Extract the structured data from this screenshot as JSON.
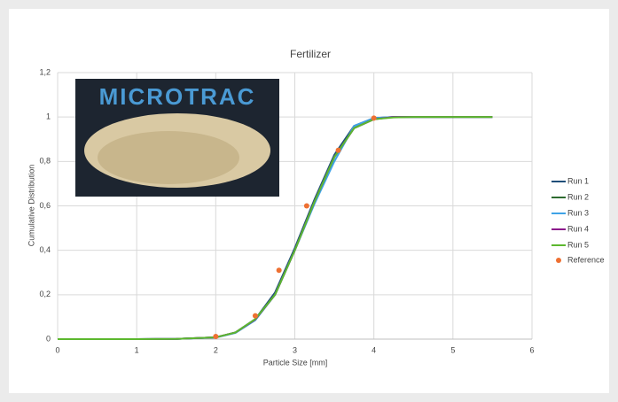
{
  "chart_data": {
    "type": "line",
    "title": "Fertilizer",
    "x_label": "Particle Size [mm]",
    "y_label": "Cumulative Distribution",
    "inset_text": "MICROTRAC",
    "x": [
      0,
      0.5,
      1,
      1.5,
      2,
      2.25,
      2.5,
      2.75,
      3,
      3.25,
      3.5,
      3.75,
      4,
      4.25,
      4.5,
      5,
      5.5
    ],
    "series": [
      {
        "name": "Run 1",
        "color": "#1f4e79",
        "values": [
          0,
          0,
          0,
          0.001,
          0.008,
          0.03,
          0.09,
          0.21,
          0.41,
          0.63,
          0.83,
          0.96,
          0.995,
          1,
          1,
          1,
          1
        ]
      },
      {
        "name": "Run 2",
        "color": "#2e6b30",
        "values": [
          0,
          0,
          0,
          0.001,
          0.008,
          0.03,
          0.09,
          0.2,
          0.4,
          0.62,
          0.82,
          0.95,
          0.99,
          1,
          1,
          1,
          1
        ]
      },
      {
        "name": "Run 3",
        "color": "#3fa3e6",
        "values": [
          0,
          0,
          0,
          0.001,
          0.007,
          0.028,
          0.085,
          0.2,
          0.4,
          0.61,
          0.8,
          0.96,
          0.995,
          1,
          1,
          1,
          1
        ]
      },
      {
        "name": "Run 4",
        "color": "#8b1a8b",
        "values": [
          0,
          0,
          0,
          0.001,
          0.008,
          0.03,
          0.088,
          0.2,
          0.4,
          0.62,
          0.82,
          0.95,
          0.99,
          1,
          1,
          1,
          1
        ]
      },
      {
        "name": "Run 5",
        "color": "#5cb82e",
        "values": [
          0,
          0,
          0,
          0.001,
          0.008,
          0.03,
          0.09,
          0.2,
          0.4,
          0.62,
          0.82,
          0.95,
          0.99,
          0.998,
          1,
          1,
          1
        ]
      }
    ],
    "reference": {
      "name": "Reference",
      "color": "#ee7032",
      "x": [
        2,
        2.5,
        2.8,
        3.15,
        3.55,
        4
      ],
      "values": [
        0.012,
        0.105,
        0.31,
        0.6,
        0.85,
        0.995
      ]
    },
    "xlim": [
      0,
      6
    ],
    "xticks": [
      0,
      1,
      2,
      3,
      4,
      5,
      6
    ],
    "ylim": [
      0,
      1.2
    ],
    "yticks": [
      0,
      {
        "value": 0.2,
        "label": "0,2"
      },
      {
        "value": 0.4,
        "label": "0,4"
      },
      {
        "value": 0.6,
        "label": "0,6"
      },
      {
        "value": 0.8,
        "label": "0,8"
      },
      1,
      {
        "value": 1.2,
        "label": "1,2"
      }
    ],
    "grid": true,
    "legend": "right"
  }
}
